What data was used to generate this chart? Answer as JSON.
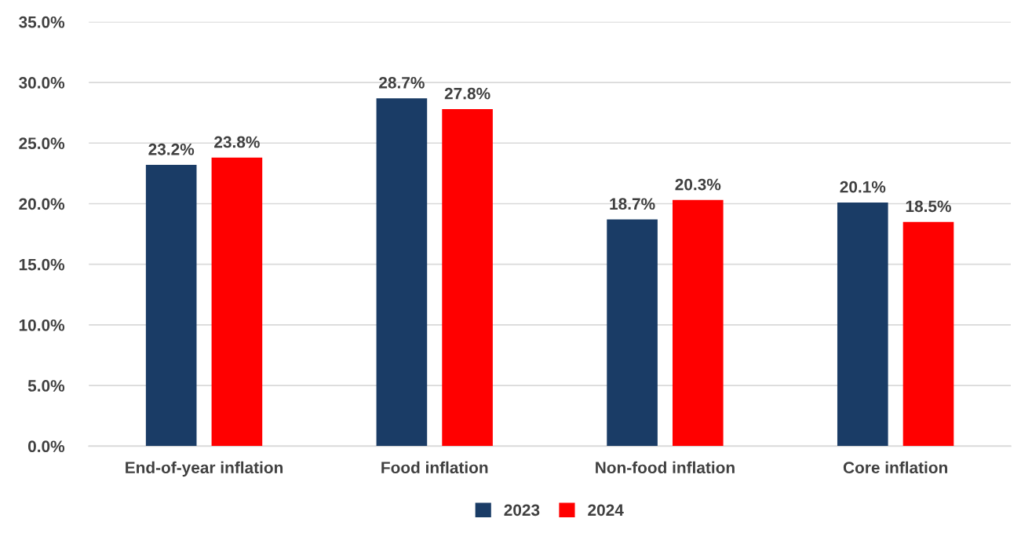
{
  "chart_data": {
    "type": "bar",
    "categories": [
      "End-of-year inflation",
      "Food inflation",
      "Non-food inflation",
      "Core inflation"
    ],
    "series": [
      {
        "name": "2023",
        "color": "#1a3c66",
        "values": [
          23.2,
          28.7,
          18.7,
          20.1
        ],
        "value_labels": [
          "23.2%",
          "28.7%",
          "18.7%",
          "20.1%"
        ]
      },
      {
        "name": "2024",
        "color": "#ff0000",
        "values": [
          23.8,
          27.8,
          20.3,
          18.5
        ],
        "value_labels": [
          "23.8%",
          "27.8%",
          "20.3%",
          "18.5%"
        ]
      }
    ],
    "ylim": [
      0,
      35
    ],
    "yticks": [
      {
        "value": 0,
        "label": "0.0%"
      },
      {
        "value": 5,
        "label": "5.0%"
      },
      {
        "value": 10,
        "label": "10.0%"
      },
      {
        "value": 15,
        "label": "15.0%"
      },
      {
        "value": 20,
        "label": "20.0%"
      },
      {
        "value": 25,
        "label": "25.0%"
      },
      {
        "value": 30,
        "label": "30.0%"
      },
      {
        "value": 35,
        "label": "35.0%"
      }
    ],
    "grid": "y",
    "legend": "bottom"
  }
}
